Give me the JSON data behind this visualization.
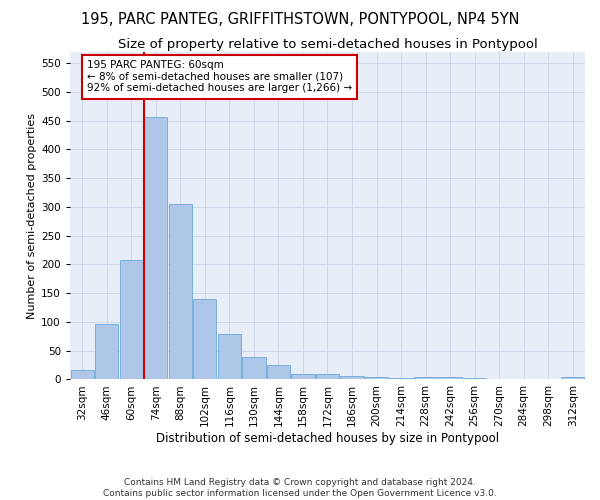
{
  "title": "195, PARC PANTEG, GRIFFITHSTOWN, PONTYPOOL, NP4 5YN",
  "subtitle": "Size of property relative to semi-detached houses in Pontypool",
  "xlabel": "Distribution of semi-detached houses by size in Pontypool",
  "ylabel": "Number of semi-detached properties",
  "footer_line1": "Contains HM Land Registry data © Crown copyright and database right 2024.",
  "footer_line2": "Contains public sector information licensed under the Open Government Licence v3.0.",
  "bar_labels": [
    "32sqm",
    "46sqm",
    "60sqm",
    "74sqm",
    "88sqm",
    "102sqm",
    "116sqm",
    "130sqm",
    "144sqm",
    "158sqm",
    "172sqm",
    "186sqm",
    "200sqm",
    "214sqm",
    "228sqm",
    "242sqm",
    "256sqm",
    "270sqm",
    "284sqm",
    "298sqm",
    "312sqm"
  ],
  "bar_values": [
    16,
    97,
    207,
    456,
    305,
    140,
    79,
    39,
    25,
    10,
    10,
    6,
    4,
    3,
    5,
    4,
    3,
    1,
    0,
    0,
    5
  ],
  "bar_color": "#aec6e8",
  "bar_edge_color": "#5a9fd4",
  "highlight_bar_index": 2,
  "line_color": "#cc0000",
  "annotation_line1": "195 PARC PANTEG: 60sqm",
  "annotation_line2": "← 8% of semi-detached houses are smaller (107)",
  "annotation_line3": "92% of semi-detached houses are larger (1,266) →",
  "annotation_box_color": "#ffffff",
  "annotation_box_edge": "#cc0000",
  "ylim": [
    0,
    570
  ],
  "yticks": [
    0,
    50,
    100,
    150,
    200,
    250,
    300,
    350,
    400,
    450,
    500,
    550
  ],
  "title_fontsize": 10.5,
  "subtitle_fontsize": 9.5,
  "xlabel_fontsize": 8.5,
  "ylabel_fontsize": 8,
  "tick_fontsize": 7.5,
  "annotation_fontsize": 7.5,
  "footer_fontsize": 6.5
}
